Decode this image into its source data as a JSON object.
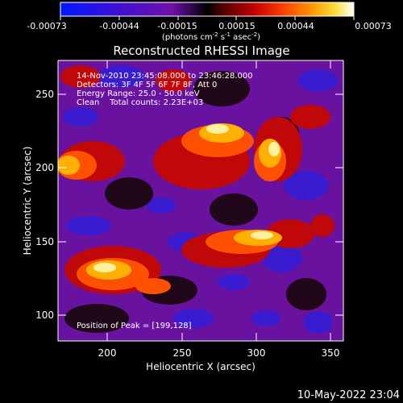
{
  "colorbar": {
    "ticks": [
      "-0.00073",
      "-0.00044",
      "-0.00015",
      "0.00015",
      "0.00044",
      "0.00073"
    ],
    "units_line": "(photons cm",
    "units_exp1": "-2",
    "units_s": " s",
    "units_exp2": "-1",
    "units_asec": " asec",
    "units_exp3": "-2",
    "units_close": ")"
  },
  "plot": {
    "title": "Reconstructed RHESSI Image",
    "xlabel": "Heliocentric X (arcsec)",
    "ylabel": "Heliocentric Y (arcsec)",
    "x_ticks": [
      "200",
      "250",
      "300",
      "350"
    ],
    "y_ticks": [
      "250",
      "200",
      "150",
      "100"
    ]
  },
  "annotations": {
    "time_range": "14-Nov-2010 23:45:08.000 to 23:46:28.000",
    "detectors": "Detectors: 3F 4F 5F 6F 7F 8F, Att 0",
    "energy": "Energy Range: 25.0 - 50.0 keV",
    "clean": "Clean    Total counts: 2.23E+03",
    "peak": "Position of Peak = [199,128]"
  },
  "footer": {
    "timestamp": "10-May-2022 23:04"
  },
  "colors": {
    "background": "#000000",
    "foreground": "#ffffff"
  }
}
